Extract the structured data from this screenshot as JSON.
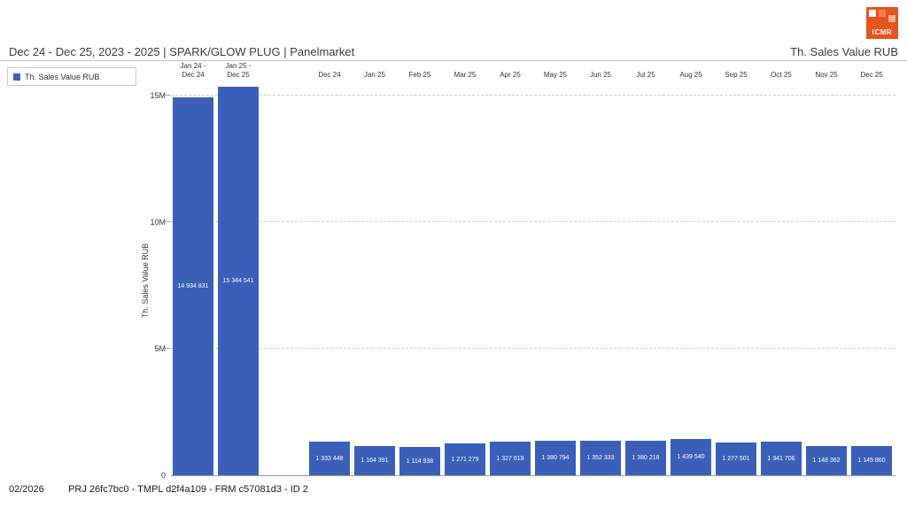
{
  "logo": {
    "text": "ICMR",
    "color": "#e8531e"
  },
  "header": {
    "title_left": "Dec 24 - Dec 25, 2023 - 2025 | SPARK/GLOW PLUG | Panelmarket",
    "title_right": "Th. Sales Value RUB"
  },
  "legend": {
    "position": "top-left",
    "items": [
      {
        "label": "Th. Sales Value RUB",
        "color": "#3a5fb8"
      }
    ]
  },
  "footer": {
    "date": "02/2026",
    "meta": "PRJ 26fc7bc0 - TMPL d2f4a109 - FRM c57081d3 - ID 2"
  },
  "chart_data": {
    "type": "bar",
    "title": "Dec 24 - Dec 25, 2023 - 2025 | SPARK/GLOW PLUG | Panelmarket",
    "ylabel": "Th. Sales Value RUB",
    "ylim": [
      0,
      15500000
    ],
    "grid": "dashed-horizontal",
    "legend_position": "top-left",
    "bar_color": "#3a5fb8",
    "group_break_index": 2,
    "yticks": [
      {
        "value": 0,
        "label": "0"
      },
      {
        "value": 5000000,
        "label": "5M"
      },
      {
        "value": 10000000,
        "label": "10M"
      },
      {
        "value": 15000000,
        "label": "15M"
      }
    ],
    "categories": [
      "Jan 24 -\nDec 24",
      "Jan 25 -\nDec 25",
      "Dec 24",
      "Jan 25",
      "Feb 25",
      "Mar 25",
      "Apr 25",
      "May 25",
      "Jun 25",
      "Jul 25",
      "Aug 25",
      "Sep 25",
      "Oct 25",
      "Nov 25",
      "Dec 25"
    ],
    "values": [
      14934831,
      15344541,
      1333448,
      1164391,
      1114938,
      1271279,
      1327619,
      1380794,
      1352333,
      1380218,
      1439540,
      1277501,
      1341706,
      1148362,
      1145860
    ],
    "value_labels": [
      "14 934 831",
      "15 344 541",
      "1 333 448",
      "1 164 391",
      "1 114 938",
      "1 271 279",
      "1 327 619",
      "1 380 794",
      "1 352 333",
      "1 380 218",
      "1 439 540",
      "1 277 501",
      "1 341 706",
      "1 148 362",
      "1 145 860"
    ]
  }
}
